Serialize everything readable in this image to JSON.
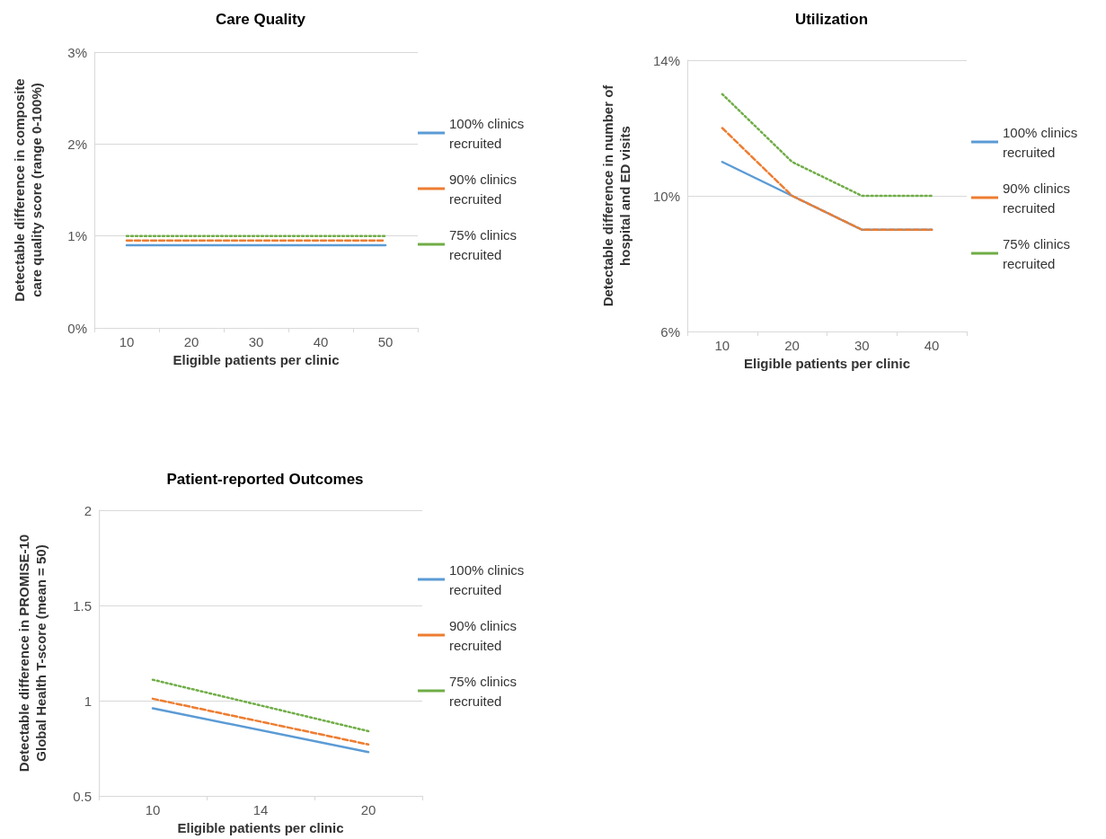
{
  "chart_data": [
    {
      "type": "line",
      "title": "Care Quality",
      "xlabel": "Eligible patients per clinic",
      "ylabel": "Detectable difference in composite care quality score (range 0-100%)",
      "categories": [
        "10",
        "20",
        "30",
        "40",
        "50"
      ],
      "ylim": [
        0,
        3
      ],
      "yticks": [
        {
          "value": 0,
          "label": "0%"
        },
        {
          "value": 1,
          "label": "1%"
        },
        {
          "value": 2,
          "label": "2%"
        },
        {
          "value": 3,
          "label": "3%"
        }
      ],
      "grid": "y",
      "legend": "right",
      "marker": "none",
      "series": [
        {
          "name": "100% clinics recruited",
          "color": "#5b9bd5",
          "line_style": "solid",
          "values": [
            0.9,
            0.9,
            0.9,
            0.9,
            0.9
          ]
        },
        {
          "name": "90% clinics recruited",
          "color": "#ed7d31",
          "line_style": "dashed",
          "values": [
            0.95,
            0.95,
            0.95,
            0.95,
            0.95
          ]
        },
        {
          "name": "75% clinics recruited",
          "color": "#70ad47",
          "line_style": "dotted",
          "values": [
            1.0,
            1.0,
            1.0,
            1.0,
            1.0
          ]
        }
      ]
    },
    {
      "type": "line",
      "title": "Utilization",
      "xlabel": "Eligible patients per clinic",
      "ylabel": "Detectable difference in number of hospital and ED visits",
      "categories": [
        "10",
        "20",
        "30",
        "40"
      ],
      "ylim": [
        6,
        14
      ],
      "yticks": [
        {
          "value": 6,
          "label": "6%"
        },
        {
          "value": 10,
          "label": "10%"
        },
        {
          "value": 14,
          "label": "14%"
        }
      ],
      "grid": "y",
      "legend": "right",
      "marker": "none",
      "series": [
        {
          "name": "100% clinics recruited",
          "color": "#5b9bd5",
          "line_style": "solid",
          "values": [
            11,
            10,
            9,
            9
          ]
        },
        {
          "name": "90% clinics recruited",
          "color": "#ed7d31",
          "line_style": "dashed",
          "values": [
            12,
            10,
            9,
            9
          ]
        },
        {
          "name": "75% clinics recruited",
          "color": "#70ad47",
          "line_style": "dotted",
          "values": [
            13,
            11,
            10,
            10
          ]
        }
      ]
    },
    {
      "type": "line",
      "title": "Patient-reported Outcomes",
      "xlabel": "Eligible patients per clinic",
      "ylabel": "Detectable difference in PROMISE-10 Global Health T-score (mean = 50)",
      "categories": [
        "10",
        "14",
        "20"
      ],
      "ylim": [
        0.5,
        2
      ],
      "yticks": [
        0.5,
        1,
        1.5,
        2
      ],
      "grid": "y",
      "legend": "right",
      "marker": "none",
      "series": [
        {
          "name": "100% clinics recruited",
          "color": "#5b9bd5",
          "line_style": "solid",
          "values": [
            0.96,
            null,
            0.73
          ]
        },
        {
          "name": "90% clinics recruited",
          "color": "#ed7d31",
          "line_style": "dashed",
          "values": [
            1.01,
            null,
            0.77
          ]
        },
        {
          "name": "75% clinics recruited",
          "color": "#70ad47",
          "line_style": "dotted",
          "values": [
            1.11,
            null,
            0.84
          ]
        }
      ]
    }
  ]
}
